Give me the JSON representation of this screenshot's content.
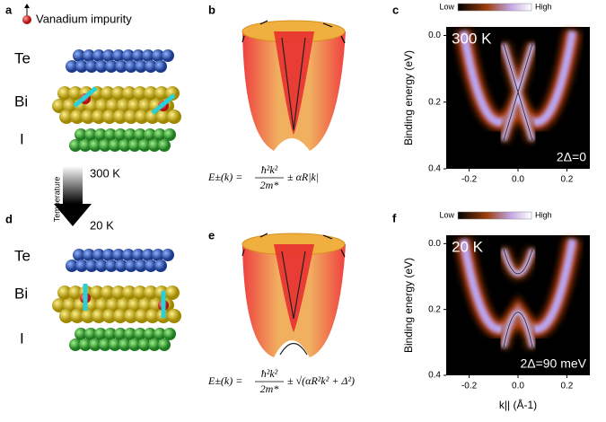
{
  "panels": {
    "a": {
      "label": "a",
      "legend": "Vanadium impurity",
      "layers": [
        "Te",
        "Bi",
        "I"
      ]
    },
    "temperature": {
      "axis": "Temperature",
      "high": "300 K",
      "low": "20 K"
    },
    "d": {
      "label": "d",
      "layers": [
        "Te",
        "Bi",
        "I"
      ]
    },
    "b": {
      "label": "b",
      "formula": {
        "lhs": "E±(k) =",
        "num": "ħ²k²",
        "den": "2m*",
        "rhs": "± αR|k|"
      }
    },
    "e": {
      "label": "e",
      "formula": {
        "lhs": "E±(k) =",
        "num": "ħ²k²",
        "den": "2m*",
        "rhs": "± √(αR²k² + Δ²)"
      }
    },
    "c": {
      "label": "c",
      "colorbar": [
        "Low",
        "High"
      ],
      "temp": "300 K",
      "gap": "2Δ=0",
      "ylabel": "Binding energy (eV)",
      "yticks": [
        "0.0",
        "0.2",
        "0.4"
      ],
      "xticks": [
        "-0.2",
        "0.0",
        "0.2"
      ]
    },
    "f": {
      "label": "f",
      "colorbar": [
        "Low",
        "High"
      ],
      "temp": "20 K",
      "gap": "2Δ=90 meV",
      "ylabel": "Binding energy (eV)",
      "yticks": [
        "0.0",
        "0.2",
        "0.4"
      ],
      "xticks": [
        "-0.2",
        "0.0",
        "0.2"
      ],
      "xlabel": "k|| (Å-1)"
    }
  }
}
